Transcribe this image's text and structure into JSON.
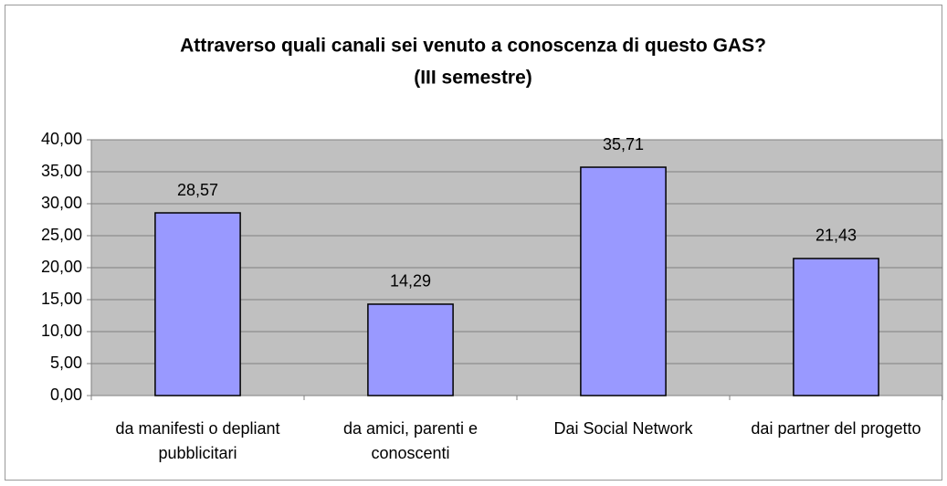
{
  "chart_data": {
    "type": "bar",
    "title": "Attraverso quali canali sei venuto a conoscenza di questo GAS?",
    "subtitle": "(III semestre)",
    "categories": [
      [
        "da manifesti o depliant",
        "pubblicitari"
      ],
      [
        "da amici, parenti e",
        "conoscenti"
      ],
      [
        "Dai Social Network"
      ],
      [
        "dai partner del progetto"
      ]
    ],
    "values": [
      28.57,
      14.29,
      35.71,
      21.43
    ],
    "value_labels": [
      "28,57",
      "14,29",
      "35,71",
      "21,43"
    ],
    "color": "#9999ff",
    "ylim": [
      0,
      40
    ],
    "yticks": [
      {
        "value": 0,
        "label": "0,00"
      },
      {
        "value": 5,
        "label": "5,00"
      },
      {
        "value": 10,
        "label": "10,00"
      },
      {
        "value": 15,
        "label": "15,00"
      },
      {
        "value": 20,
        "label": "20,00"
      },
      {
        "value": 25,
        "label": "25,00"
      },
      {
        "value": 30,
        "label": "30,00"
      },
      {
        "value": 35,
        "label": "35,00"
      },
      {
        "value": 40,
        "label": "40,00"
      }
    ],
    "grid": true
  }
}
